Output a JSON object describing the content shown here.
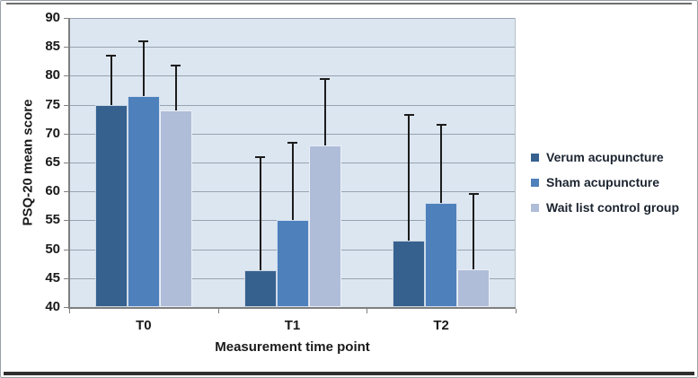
{
  "figure": {
    "kind": "grouped bar chart with error bars"
  },
  "chart_data": {
    "type": "bar",
    "title": "",
    "categories": [
      "T0",
      "T1",
      "T2"
    ],
    "series": [
      {
        "name": "Verum acupuncture",
        "color": "#36618F",
        "values": [
          75.0,
          46.3,
          51.5
        ],
        "error_upper": [
          8.5,
          19.7,
          21.8
        ]
      },
      {
        "name": "Sham acupuncture",
        "color": "#4E80BC",
        "values": [
          76.5,
          55.0,
          58.0
        ],
        "error_upper": [
          9.5,
          13.5,
          13.5
        ]
      },
      {
        "name": "Wait list control group",
        "color": "#AFBDD9",
        "values": [
          74.0,
          68.0,
          46.5
        ],
        "error_upper": [
          7.8,
          11.5,
          13.0
        ]
      }
    ],
    "xlabel": "Measurement time point",
    "ylabel": "PSQ-20 mean score",
    "ylim": [
      40,
      90
    ],
    "ytick_step": 5,
    "grid": true,
    "legend_position": "right",
    "colors": {
      "plot_background": "#DCE6F1",
      "gridline": "#97A3B1",
      "axis": "#7F7F7F",
      "error_bar": "#1C1C1C",
      "text": "#1A1A1A",
      "plot_right_border": "#B6C0CA"
    }
  }
}
